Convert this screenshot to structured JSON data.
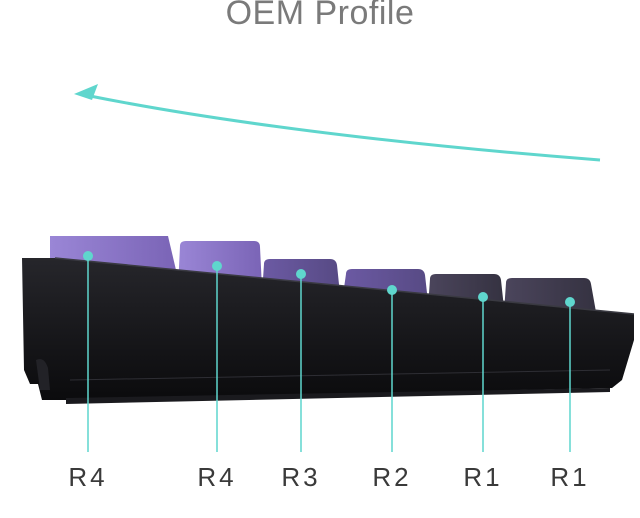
{
  "title": "OEM Profile",
  "colors": {
    "accent": "#5fd6cd",
    "case": "#111114",
    "caps_light": "#8a74c4",
    "caps_dark": "#3e3a4c"
  },
  "rows": [
    {
      "label": "R4"
    },
    {
      "label": "R4"
    },
    {
      "label": "R3"
    },
    {
      "label": "R2"
    },
    {
      "label": "R1"
    },
    {
      "label": "R1"
    }
  ]
}
